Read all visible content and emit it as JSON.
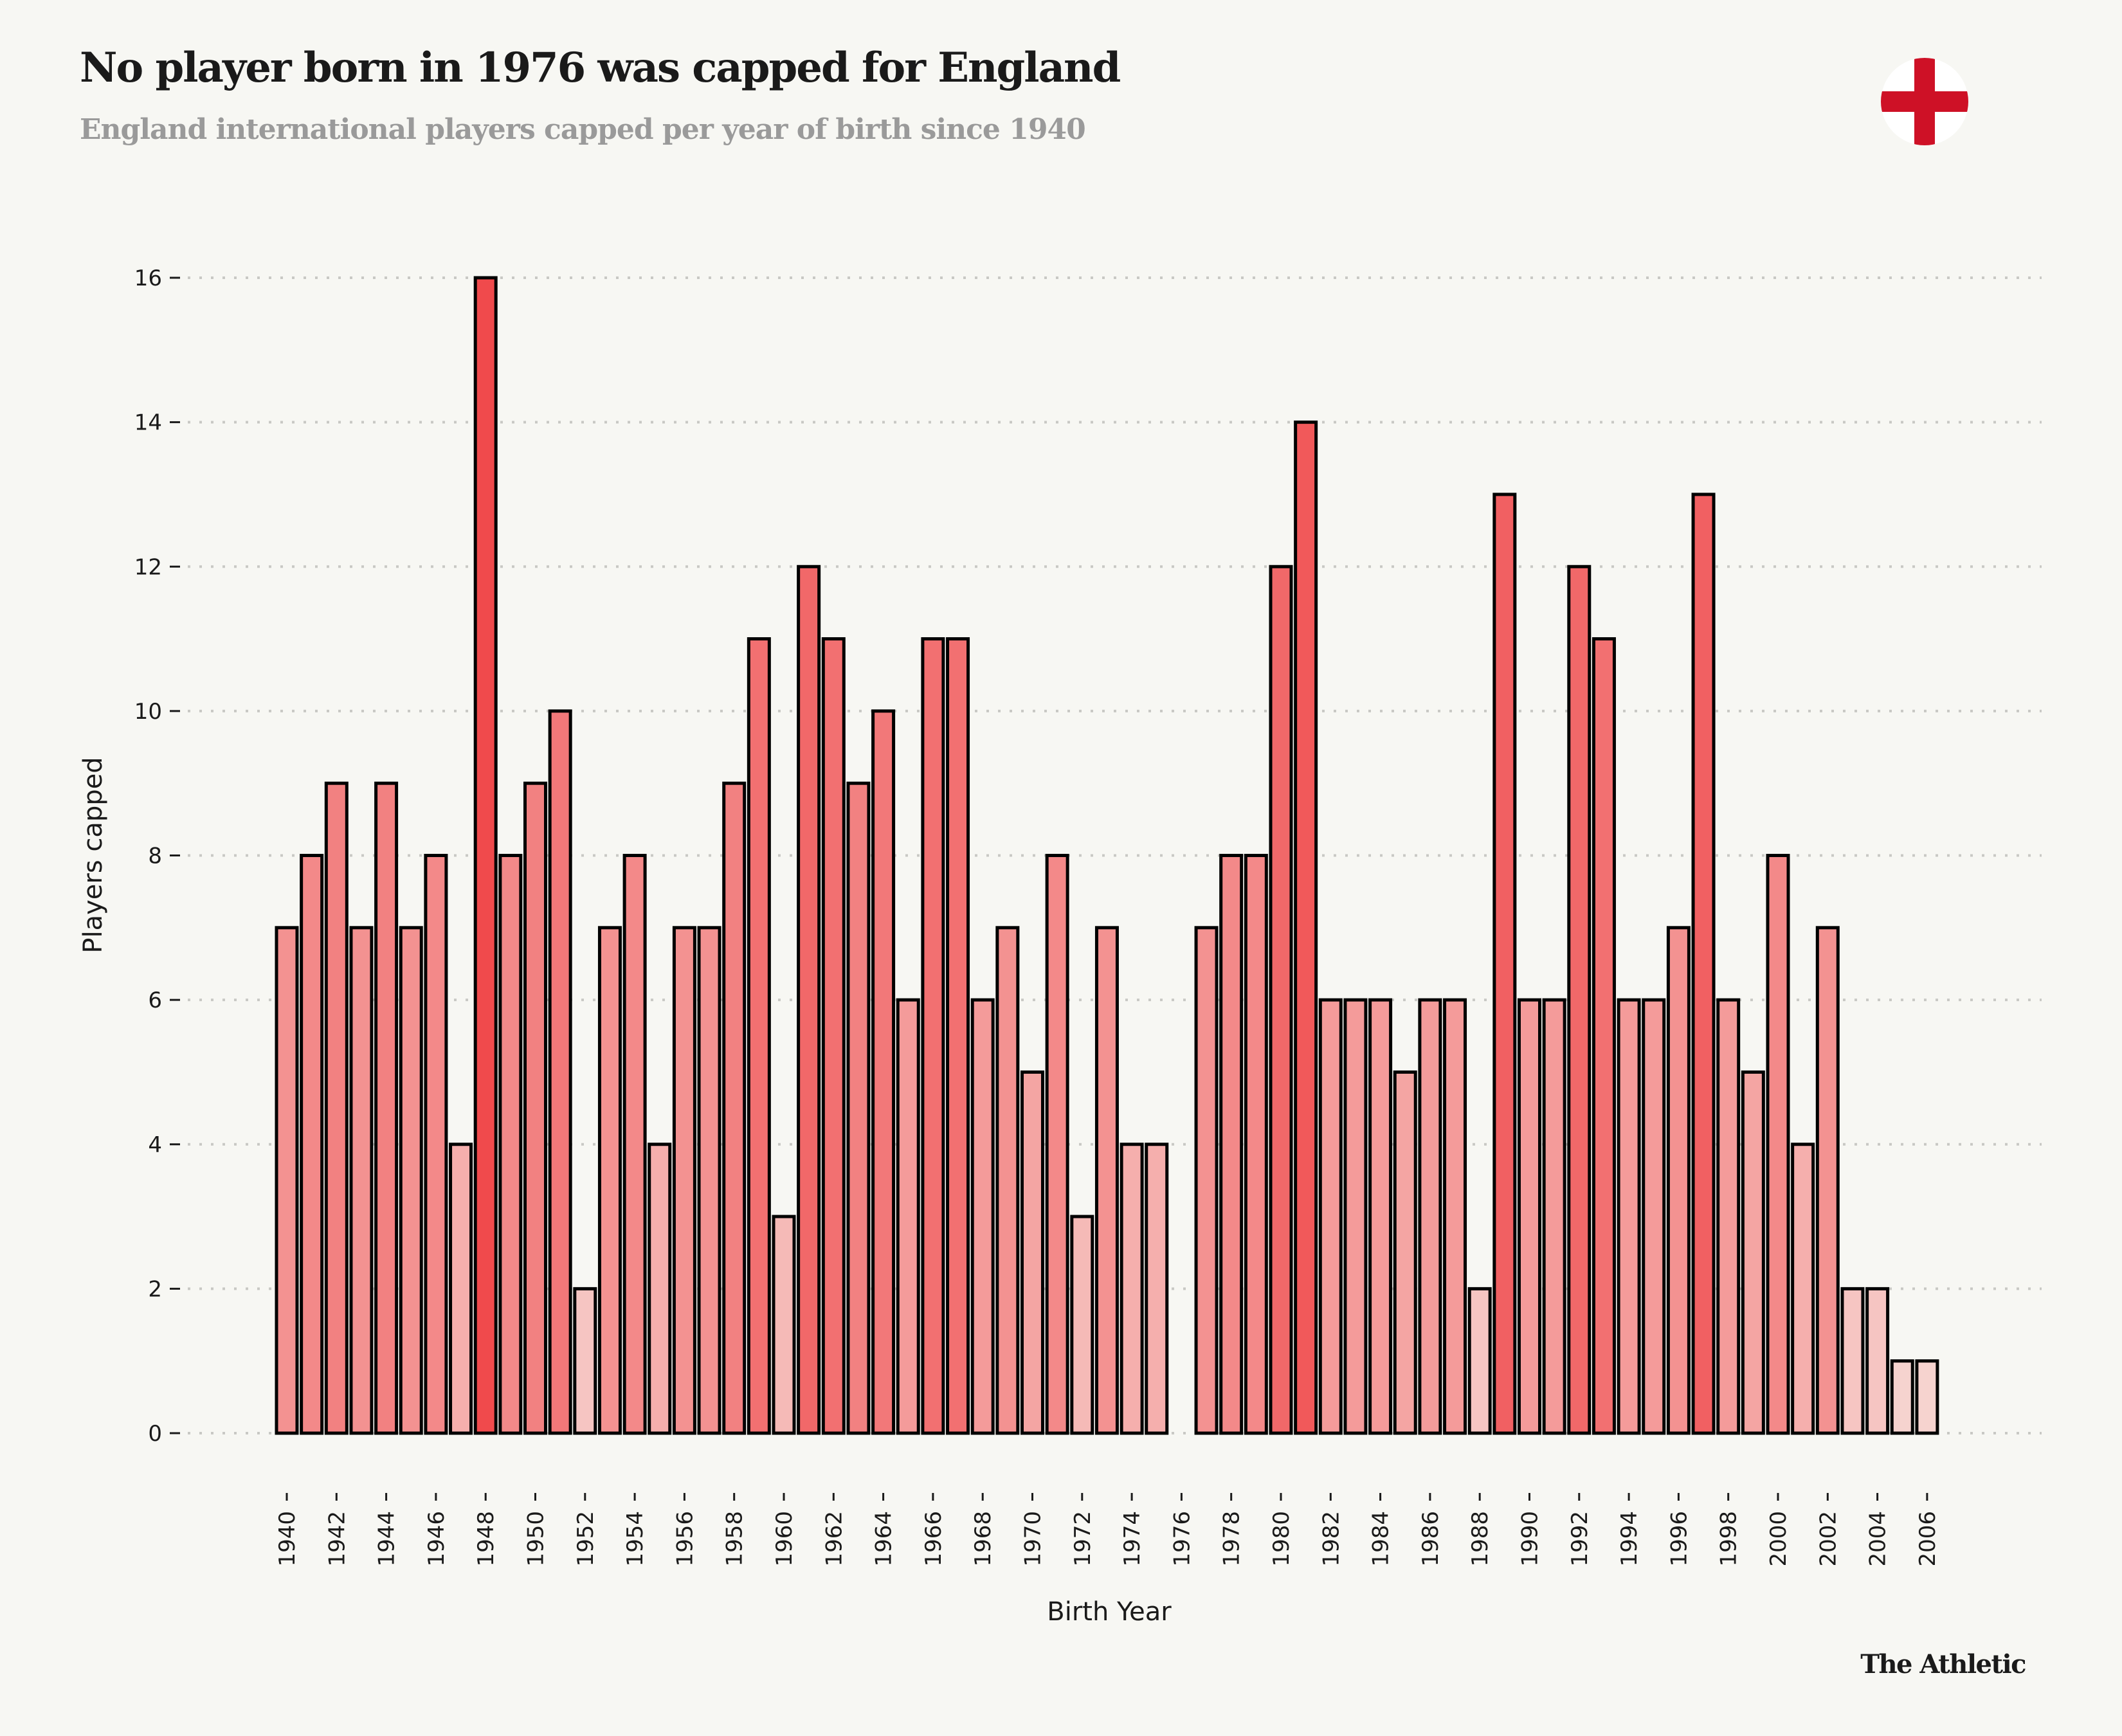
{
  "header": {
    "title": "No player born in 1976 was capped for England",
    "subtitle": "England international players capped per year of birth since 1940",
    "flag_icon": "england-flag-icon"
  },
  "footer": {
    "brand": "The Athletic"
  },
  "colors": {
    "background": "#f7f7f3",
    "bar_stroke": "#000000",
    "bar_low": "#f7e6e2",
    "bar_high": "#f04a4c",
    "gridline": "#c8c8c4",
    "flag_red": "#ce1126"
  },
  "chart_data": {
    "type": "bar",
    "title": "No player born in 1976 was capped for England",
    "subtitle": "England international players capped per year of birth since 1940",
    "xlabel": "Birth Year",
    "ylabel": "Players capped",
    "ylim": [
      0,
      16
    ],
    "yticks": [
      0,
      2,
      4,
      6,
      8,
      10,
      12,
      14,
      16
    ],
    "xtick_labels": [
      "1940",
      "1942",
      "1944",
      "1946",
      "1948",
      "1950",
      "1952",
      "1954",
      "1956",
      "1958",
      "1960",
      "1962",
      "1964",
      "1966",
      "1968",
      "1970",
      "1972",
      "1974",
      "1976",
      "1978",
      "1980",
      "1982",
      "1984",
      "1986",
      "1988",
      "1990",
      "1992",
      "1994",
      "1996",
      "1998",
      "2000",
      "2002",
      "2004",
      "2006"
    ],
    "grid": "horizontal-dotted",
    "legend": "none",
    "categories": [
      1940,
      1941,
      1942,
      1943,
      1944,
      1945,
      1946,
      1947,
      1948,
      1949,
      1950,
      1951,
      1952,
      1953,
      1954,
      1955,
      1956,
      1957,
      1958,
      1959,
      1960,
      1961,
      1962,
      1963,
      1964,
      1965,
      1966,
      1967,
      1968,
      1969,
      1970,
      1971,
      1972,
      1973,
      1974,
      1975,
      1976,
      1977,
      1978,
      1979,
      1980,
      1981,
      1982,
      1983,
      1984,
      1985,
      1986,
      1987,
      1988,
      1989,
      1990,
      1991,
      1992,
      1993,
      1994,
      1995,
      1996,
      1997,
      1998,
      1999,
      2000,
      2001,
      2002,
      2003,
      2004,
      2005,
      2006
    ],
    "values": [
      7,
      8,
      9,
      7,
      9,
      7,
      8,
      4,
      16,
      8,
      9,
      10,
      2,
      7,
      8,
      4,
      7,
      7,
      9,
      11,
      3,
      12,
      11,
      9,
      10,
      6,
      11,
      11,
      6,
      7,
      5,
      8,
      3,
      7,
      4,
      4,
      0,
      7,
      8,
      8,
      12,
      14,
      6,
      6,
      6,
      5,
      6,
      6,
      2,
      13,
      6,
      6,
      12,
      11,
      6,
      6,
      7,
      13,
      6,
      5,
      8,
      4,
      7,
      2,
      2,
      1,
      1
    ]
  }
}
